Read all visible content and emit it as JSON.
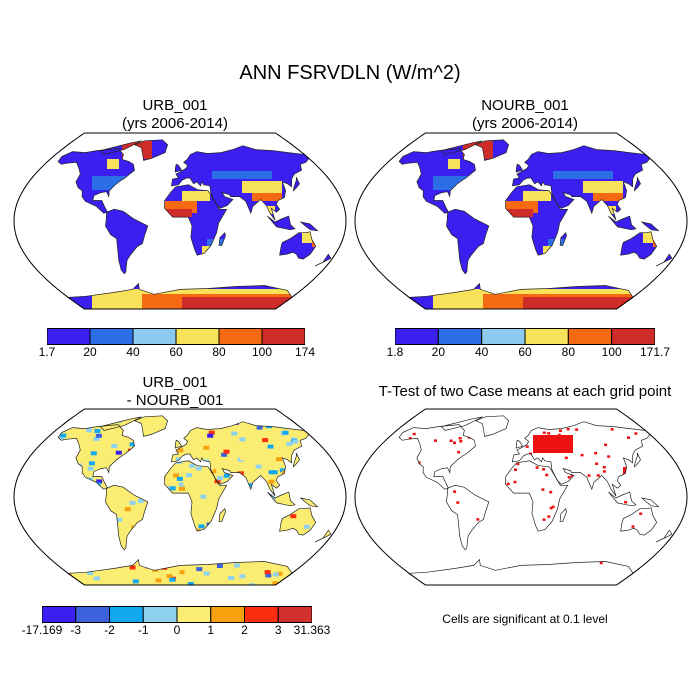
{
  "main_title": "ANN FSRVDLN (W/m^2)",
  "panels": [
    {
      "title_line1": "URB_001",
      "title_line2": "(yrs 2006-2014)"
    },
    {
      "title_line1": "NOURB_001",
      "title_line2": "(yrs 2006-2014)"
    },
    {
      "title_line1": "URB_001",
      "title_line2": "- NOURB_001"
    },
    {
      "title_line1": "T-Test of two Case means at each grid point"
    }
  ],
  "colorbars": [
    {
      "labels": [
        "1.7",
        "20",
        "40",
        "60",
        "80",
        "100",
        "174"
      ],
      "colors": [
        "#3a1ff0",
        "#2c6ee6",
        "#8ccbef",
        "#f7e259",
        "#f56a12",
        "#cf2b28"
      ]
    },
    {
      "labels": [
        "1.8",
        "20",
        "40",
        "60",
        "80",
        "100",
        "171.7"
      ],
      "colors": [
        "#3a1ff0",
        "#2c6ee6",
        "#8ccbef",
        "#f7e259",
        "#f56a12",
        "#cf2b28"
      ]
    },
    {
      "labels": [
        "-17.169",
        "-3",
        "-2",
        "-1",
        "0",
        "1",
        "2",
        "3",
        "31.363"
      ],
      "colors": [
        "#3a1ff0",
        "#3d62de",
        "#12a8f0",
        "#8fd2ef",
        "#fbec72",
        "#f8a10e",
        "#fb2e0f",
        "#d22f2f"
      ]
    }
  ],
  "note": "Cells are significant at 0.1 level",
  "colors": {
    "ttest": "#ee1111",
    "land_outline": "#222222",
    "background": "#ffffff"
  }
}
